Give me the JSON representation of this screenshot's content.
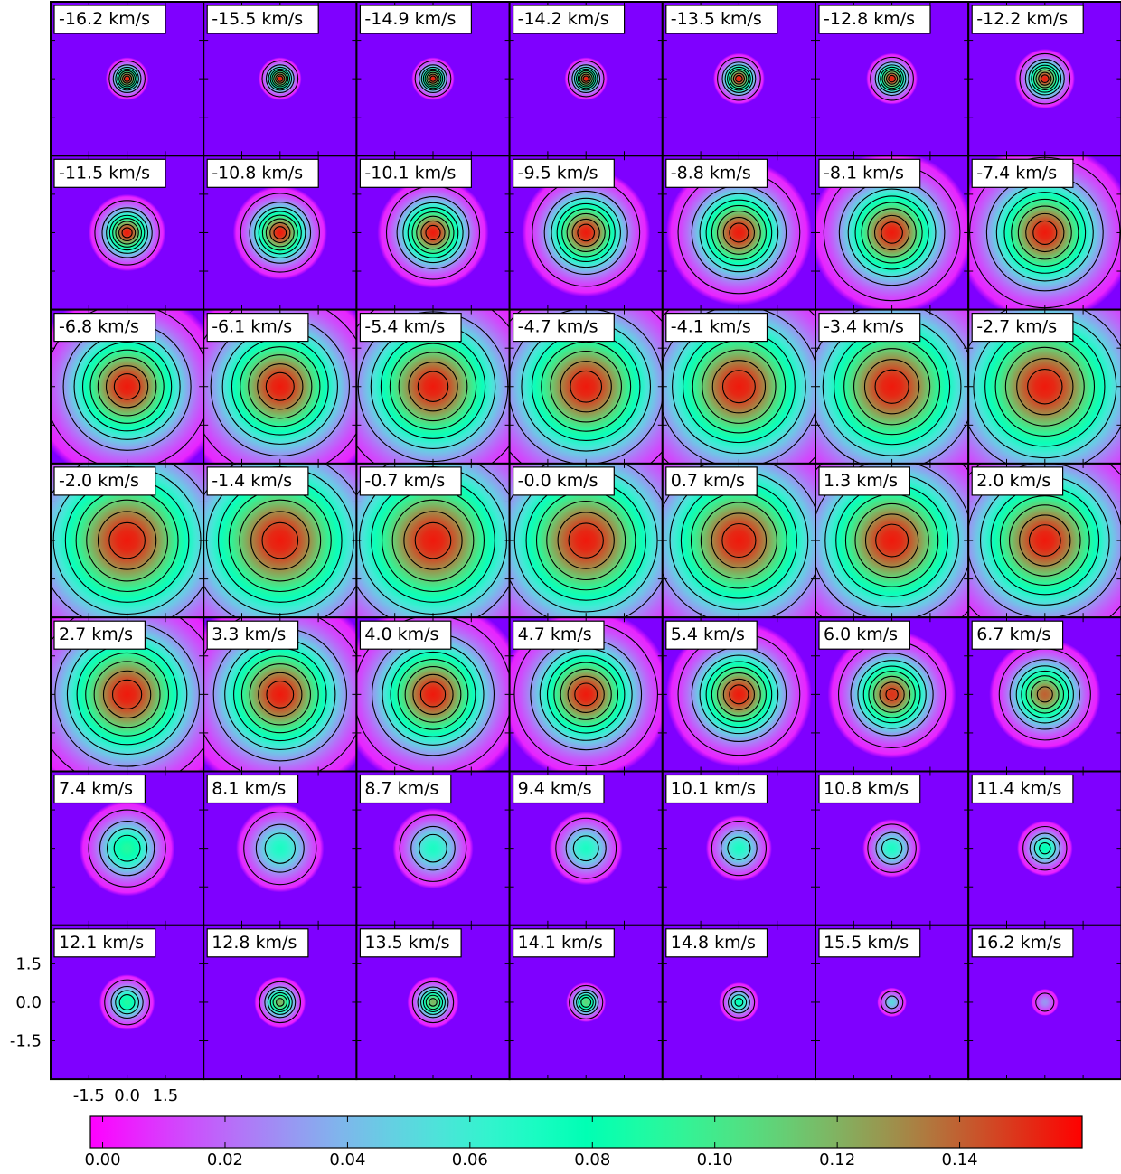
{
  "chart_data": {
    "type": "heatmap",
    "title": "",
    "rows": 7,
    "cols": 7,
    "panel_units": "km/s",
    "panels": [
      {
        "label": "-16.2 km/s",
        "velocity": -16.2,
        "peak": 0.155,
        "sigma": 0.05,
        "cx": 0.0,
        "cy": 0.0
      },
      {
        "label": "-15.5 km/s",
        "velocity": -15.5,
        "peak": 0.155,
        "sigma": 0.05,
        "cx": 0.0,
        "cy": 0.0
      },
      {
        "label": "-14.9 km/s",
        "velocity": -14.9,
        "peak": 0.155,
        "sigma": 0.05,
        "cx": 0.0,
        "cy": 0.0
      },
      {
        "label": "-14.2 km/s",
        "velocity": -14.2,
        "peak": 0.155,
        "sigma": 0.05,
        "cx": 0.0,
        "cy": 0.0
      },
      {
        "label": "-13.5 km/s",
        "velocity": -13.5,
        "peak": 0.155,
        "sigma": 0.06,
        "cx": 0.0,
        "cy": 0.0
      },
      {
        "label": "-12.8 km/s",
        "velocity": -12.8,
        "peak": 0.155,
        "sigma": 0.06,
        "cx": 0.0,
        "cy": 0.0
      },
      {
        "label": "-12.2 km/s",
        "velocity": -12.2,
        "peak": 0.155,
        "sigma": 0.07,
        "cx": 0.0,
        "cy": 0.0
      },
      {
        "label": "-11.5 km/s",
        "velocity": -11.5,
        "peak": 0.155,
        "sigma": 0.09,
        "cx": 0.0,
        "cy": 0.0
      },
      {
        "label": "-10.8 km/s",
        "velocity": -10.8,
        "peak": 0.155,
        "sigma": 0.11,
        "cx": 0.0,
        "cy": 0.0
      },
      {
        "label": "-10.1 km/s",
        "velocity": -10.1,
        "peak": 0.155,
        "sigma": 0.13,
        "cx": 0.0,
        "cy": 0.0
      },
      {
        "label": "-9.5 km/s",
        "velocity": -9.5,
        "peak": 0.155,
        "sigma": 0.15,
        "cx": 0.0,
        "cy": 0.0
      },
      {
        "label": "-8.8 km/s",
        "velocity": -8.8,
        "peak": 0.155,
        "sigma": 0.17,
        "cx": 0.0,
        "cy": 0.0
      },
      {
        "label": "-8.1 km/s",
        "velocity": -8.1,
        "peak": 0.155,
        "sigma": 0.19,
        "cx": 0.0,
        "cy": 0.0
      },
      {
        "label": "-7.4 km/s",
        "velocity": -7.4,
        "peak": 0.155,
        "sigma": 0.21,
        "cx": 0.0,
        "cy": 0.0
      },
      {
        "label": "-6.8 km/s",
        "velocity": -6.8,
        "peak": 0.155,
        "sigma": 0.23,
        "cx": 0.0,
        "cy": 0.0
      },
      {
        "label": "-6.1 km/s",
        "velocity": -6.1,
        "peak": 0.155,
        "sigma": 0.25,
        "cx": 0.0,
        "cy": 0.0
      },
      {
        "label": "-5.4 km/s",
        "velocity": -5.4,
        "peak": 0.155,
        "sigma": 0.27,
        "cx": 0.0,
        "cy": 0.0
      },
      {
        "label": "-4.7 km/s",
        "velocity": -4.7,
        "peak": 0.155,
        "sigma": 0.28,
        "cx": 0.0,
        "cy": 0.0
      },
      {
        "label": "-4.1 km/s",
        "velocity": -4.1,
        "peak": 0.155,
        "sigma": 0.29,
        "cx": 0.0,
        "cy": 0.0
      },
      {
        "label": "-3.4 km/s",
        "velocity": -3.4,
        "peak": 0.155,
        "sigma": 0.3,
        "cx": 0.0,
        "cy": 0.0
      },
      {
        "label": "-2.7 km/s",
        "velocity": -2.7,
        "peak": 0.155,
        "sigma": 0.31,
        "cx": 0.0,
        "cy": 0.0
      },
      {
        "label": "-2.0 km/s",
        "velocity": -2.0,
        "peak": 0.155,
        "sigma": 0.32,
        "cx": 0.0,
        "cy": 0.0
      },
      {
        "label": "-1.4 km/s",
        "velocity": -1.4,
        "peak": 0.155,
        "sigma": 0.32,
        "cx": 0.0,
        "cy": 0.0
      },
      {
        "label": "-0.7 km/s",
        "velocity": -0.7,
        "peak": 0.155,
        "sigma": 0.32,
        "cx": 0.0,
        "cy": 0.0
      },
      {
        "label": "-0.0 km/s",
        "velocity": -0.0,
        "peak": 0.155,
        "sigma": 0.31,
        "cx": 0.0,
        "cy": 0.0
      },
      {
        "label": "0.7 km/s",
        "velocity": 0.7,
        "peak": 0.155,
        "sigma": 0.3,
        "cx": 0.0,
        "cy": 0.0
      },
      {
        "label": "1.3 km/s",
        "velocity": 1.3,
        "peak": 0.155,
        "sigma": 0.29,
        "cx": 0.0,
        "cy": 0.0
      },
      {
        "label": "2.0 km/s",
        "velocity": 2.0,
        "peak": 0.155,
        "sigma": 0.28,
        "cx": 0.0,
        "cy": 0.0
      },
      {
        "label": "2.7 km/s",
        "velocity": 2.7,
        "peak": 0.155,
        "sigma": 0.26,
        "cx": 0.0,
        "cy": 0.0
      },
      {
        "label": "3.3 km/s",
        "velocity": 3.3,
        "peak": 0.155,
        "sigma": 0.24,
        "cx": 0.0,
        "cy": 0.0
      },
      {
        "label": "4.0 km/s",
        "velocity": 4.0,
        "peak": 0.155,
        "sigma": 0.22,
        "cx": 0.0,
        "cy": 0.0
      },
      {
        "label": "4.7 km/s",
        "velocity": 4.7,
        "peak": 0.155,
        "sigma": 0.2,
        "cx": 0.0,
        "cy": 0.0
      },
      {
        "label": "5.4 km/s",
        "velocity": 5.4,
        "peak": 0.155,
        "sigma": 0.17,
        "cx": 0.0,
        "cy": 0.0
      },
      {
        "label": "6.0 km/s",
        "velocity": 6.0,
        "peak": 0.15,
        "sigma": 0.15,
        "cx": 0.0,
        "cy": 0.0
      },
      {
        "label": "6.7 km/s",
        "velocity": 6.7,
        "peak": 0.14,
        "sigma": 0.13,
        "cx": 0.0,
        "cy": 0.0
      },
      {
        "label": "7.4 km/s",
        "velocity": 7.4,
        "peak": 0.09,
        "sigma": 0.12,
        "cx": 0.0,
        "cy": 0.0
      },
      {
        "label": "8.1 km/s",
        "velocity": 8.1,
        "peak": 0.07,
        "sigma": 0.12,
        "cx": 0.0,
        "cy": 0.0
      },
      {
        "label": "8.7 km/s",
        "velocity": 8.7,
        "peak": 0.07,
        "sigma": 0.11,
        "cx": 0.0,
        "cy": 0.0
      },
      {
        "label": "9.4 km/s",
        "velocity": 9.4,
        "peak": 0.07,
        "sigma": 0.1,
        "cx": 0.0,
        "cy": 0.0
      },
      {
        "label": "10.1 km/s",
        "velocity": 10.1,
        "peak": 0.07,
        "sigma": 0.09,
        "cx": 0.0,
        "cy": 0.0
      },
      {
        "label": "10.8 km/s",
        "velocity": 10.8,
        "peak": 0.07,
        "sigma": 0.08,
        "cx": 0.0,
        "cy": 0.0
      },
      {
        "label": "11.4 km/s",
        "velocity": 11.4,
        "peak": 0.08,
        "sigma": 0.07,
        "cx": 0.0,
        "cy": 0.0
      },
      {
        "label": "12.1 km/s",
        "velocity": 12.1,
        "peak": 0.09,
        "sigma": 0.07,
        "cx": 0.0,
        "cy": 0.0
      },
      {
        "label": "12.8 km/s",
        "velocity": 12.8,
        "peak": 0.12,
        "sigma": 0.06,
        "cx": 0.0,
        "cy": 0.0
      },
      {
        "label": "13.5 km/s",
        "velocity": 13.5,
        "peak": 0.12,
        "sigma": 0.06,
        "cx": 0.0,
        "cy": 0.0
      },
      {
        "label": "14.1 km/s",
        "velocity": 14.1,
        "peak": 0.11,
        "sigma": 0.05,
        "cx": 0.0,
        "cy": 0.0
      },
      {
        "label": "14.8 km/s",
        "velocity": 14.8,
        "peak": 0.08,
        "sigma": 0.05,
        "cx": 0.0,
        "cy": 0.0
      },
      {
        "label": "15.5 km/s",
        "velocity": 15.5,
        "peak": 0.05,
        "sigma": 0.04,
        "cx": 0.0,
        "cy": 0.0
      },
      {
        "label": "16.2 km/s",
        "velocity": 16.2,
        "peak": 0.03,
        "sigma": 0.04,
        "cx": 0.0,
        "cy": 0.0
      }
    ],
    "x_ticks": [
      "-1.5",
      "0.0",
      "1.5"
    ],
    "y_ticks": [
      "1.5",
      "0.0",
      "-1.5"
    ],
    "axis_range": [
      -3.0,
      3.0
    ],
    "colorbar": {
      "orientation": "horizontal",
      "min": -0.002,
      "max": 0.16,
      "ticks": [
        "0.00",
        "0.02",
        "0.04",
        "0.06",
        "0.08",
        "0.10",
        "0.12",
        "0.14"
      ],
      "tick_values": [
        0.0,
        0.02,
        0.04,
        0.06,
        0.08,
        0.1,
        0.12,
        0.14
      ],
      "colormap": "rainbow"
    },
    "contour_levels": [
      0.01,
      0.03,
      0.05,
      0.07,
      0.09,
      0.11,
      0.13,
      0.145
    ],
    "background_color": "#7f00ff",
    "contour_color": "#000000"
  }
}
